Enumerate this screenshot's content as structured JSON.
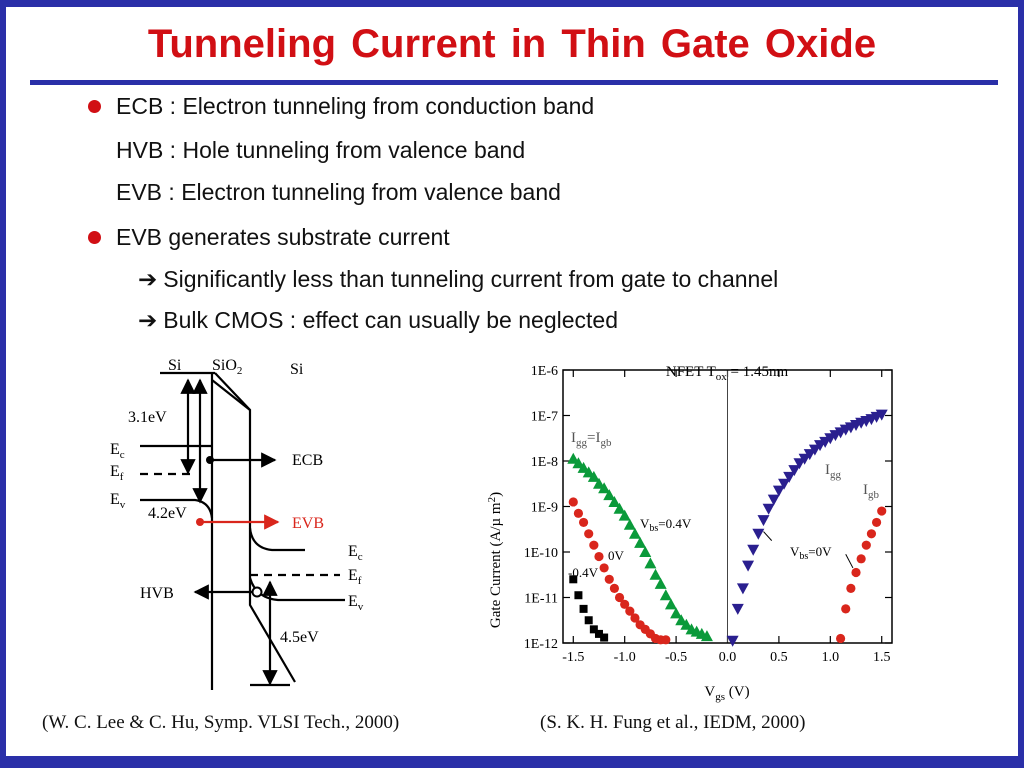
{
  "slide": {
    "title": "Tunneling  Current  in  Thin Gate  Oxide",
    "bullets": [
      "ECB : Electron tunneling from conduction band",
      "HVB : Hole tunneling from valence band",
      "EVB : Electron tunneling from valence band",
      "EVB generates substrate current",
      "Significantly less than tunneling current from gate to channel",
      "Bulk CMOS : effect can usually be neglected"
    ],
    "citations": [
      "(W. C. Lee & C. Hu, Symp. VLSI Tech., 2000)",
      "(S. K. H. Fung et al., IEDM, 2000)"
    ]
  },
  "band_diagram": {
    "left_region": "Si",
    "oxide_region": "SiO",
    "oxide_subscript": "2",
    "right_region": "Si",
    "barrier_cb": "3.1eV",
    "barrier_vb": "4.2eV",
    "barrier_right": "4.5eV",
    "left_ec": "E",
    "left_ec_sub": "c",
    "left_ef": "E",
    "left_ef_sub": "f",
    "left_ev": "E",
    "left_ev_sub": "v",
    "right_ec": "E",
    "right_ec_sub": "c",
    "right_ef": "E",
    "right_ef_sub": "f",
    "right_ev": "E",
    "right_ev_sub": "v",
    "ecb_label": "ECB",
    "evb_label": "EVB",
    "hvb_label": "HVB",
    "colors": {
      "evb": "#d9261c",
      "lines": "#000000"
    }
  },
  "chart_data": {
    "type": "scatter",
    "title": "NFET T",
    "title_sub": "ox",
    "title_tail": " = 1.45nm",
    "xlabel": "V",
    "xlabel_sub": "gs",
    "xlabel_tail": " (V)",
    "ylabel": "Gate Current (A/µ m",
    "ylabel_sup": "2",
    "ylabel_tail": ")",
    "xlim": [
      -1.6,
      1.6
    ],
    "ylim": [
      -12,
      -6
    ],
    "y_log": true,
    "x_ticks": [
      "-1.5",
      "-1.0",
      "-0.5",
      "0.0",
      "0.5",
      "1.0",
      "1.5"
    ],
    "x_tick_values": [
      -1.5,
      -1.0,
      -0.5,
      0.0,
      0.5,
      1.0,
      1.5
    ],
    "y_ticks": [
      "1E-6",
      "1E-7",
      "1E-8",
      "1E-9",
      "1E-10",
      "1E-11",
      "1E-12"
    ],
    "y_tick_values": [
      -6,
      -7,
      -8,
      -9,
      -10,
      -11,
      -12
    ],
    "annotations": {
      "igg_igb_left": {
        "a": "I",
        "a_sub": "gg",
        "mid": "=I",
        "b_sub": "gb"
      },
      "igg_right": {
        "a": "I",
        "a_sub": "gg"
      },
      "igb_right": {
        "a": "I",
        "a_sub": "gb"
      },
      "vbs_04": {
        "a": "V",
        "a_sub": "bs",
        "tail": "=0.4V"
      },
      "vbs_0_left": "0V",
      "vbs_m04": "-0.4V",
      "vbs_0_right": {
        "a": "V",
        "a_sub": "bs",
        "tail": "=0V"
      }
    },
    "series": [
      {
        "marker": "triangle-up",
        "color": "#0a9a3a",
        "x": [
          -1.5,
          -1.45,
          -1.4,
          -1.35,
          -1.3,
          -1.25,
          -1.2,
          -1.15,
          -1.1,
          -1.05,
          -1.0,
          -0.95,
          -0.9,
          -0.85,
          -0.8,
          -0.75,
          -0.7,
          -0.65,
          -0.6,
          -0.55,
          -0.5,
          -0.45,
          -0.4,
          -0.35,
          -0.3,
          -0.25,
          -0.2
        ],
        "y": [
          -7.95,
          -8.05,
          -8.15,
          -8.25,
          -8.35,
          -8.5,
          -8.6,
          -8.75,
          -8.9,
          -9.05,
          -9.2,
          -9.4,
          -9.6,
          -9.8,
          -10.0,
          -10.25,
          -10.5,
          -10.7,
          -10.95,
          -11.15,
          -11.35,
          -11.5,
          -11.6,
          -11.7,
          -11.75,
          -11.8,
          -11.85
        ]
      },
      {
        "marker": "circle",
        "color": "#d9261c",
        "x": [
          -1.5,
          -1.45,
          -1.4,
          -1.35,
          -1.3,
          -1.25,
          -1.2,
          -1.15,
          -1.1,
          -1.05,
          -1.0,
          -0.95,
          -0.9,
          -0.85,
          -0.8,
          -0.75,
          -0.7,
          -0.65,
          -0.6
        ],
        "y": [
          -8.9,
          -9.15,
          -9.35,
          -9.6,
          -9.85,
          -10.1,
          -10.35,
          -10.6,
          -10.8,
          -11.0,
          -11.15,
          -11.3,
          -11.45,
          -11.6,
          -11.7,
          -11.8,
          -11.9,
          -11.93,
          -11.93
        ]
      },
      {
        "marker": "square",
        "color": "#000000",
        "x": [
          -1.5,
          -1.45,
          -1.4,
          -1.35,
          -1.3,
          -1.25,
          -1.2
        ],
        "y": [
          -10.6,
          -10.95,
          -11.25,
          -11.5,
          -11.7,
          -11.8,
          -11.88
        ]
      },
      {
        "marker": "triangle-down",
        "color": "#2a1f8f",
        "x": [
          0.05,
          0.1,
          0.15,
          0.2,
          0.25,
          0.3,
          0.35,
          0.4,
          0.45,
          0.5,
          0.55,
          0.6,
          0.65,
          0.7,
          0.75,
          0.8,
          0.85,
          0.9,
          0.95,
          1.0,
          1.05,
          1.1,
          1.15,
          1.2,
          1.25,
          1.3,
          1.35,
          1.4,
          1.45,
          1.5
        ],
        "y": [
          -11.95,
          -11.25,
          -10.8,
          -10.3,
          -9.95,
          -9.6,
          -9.3,
          -9.05,
          -8.85,
          -8.65,
          -8.5,
          -8.35,
          -8.2,
          -8.05,
          -7.95,
          -7.85,
          -7.75,
          -7.65,
          -7.58,
          -7.5,
          -7.43,
          -7.37,
          -7.31,
          -7.26,
          -7.21,
          -7.16,
          -7.12,
          -7.08,
          -7.03,
          -6.98
        ]
      },
      {
        "marker": "circle",
        "color": "#d9261c",
        "x": [
          1.1,
          1.15,
          1.2,
          1.25,
          1.3,
          1.35,
          1.4,
          1.45,
          1.5
        ],
        "y": [
          -11.9,
          -11.25,
          -10.8,
          -10.45,
          -10.15,
          -9.85,
          -9.6,
          -9.35,
          -9.1
        ]
      }
    ]
  }
}
